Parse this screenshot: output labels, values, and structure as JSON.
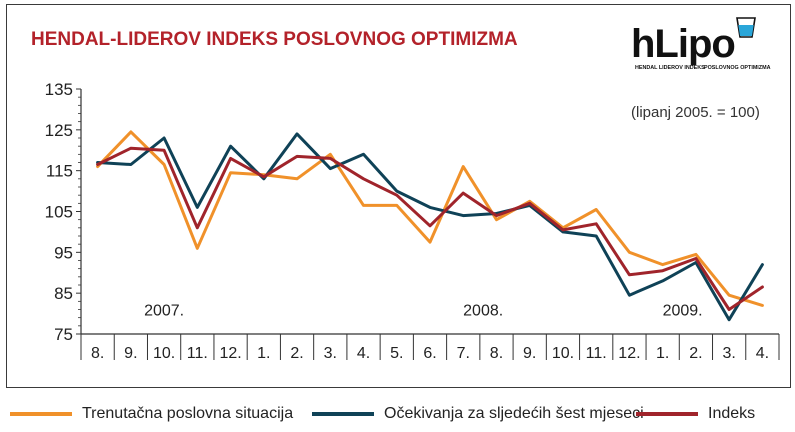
{
  "chart_data": {
    "type": "line",
    "title": "HENDAL-LIDEROV INDEKS POSLOVNOG OPTIMIZMA",
    "annotation": "(lipanj 2005. = 100)",
    "logo": {
      "text": "hLipo",
      "subtitle_left": "HENDAL LIDEROV INDEKS",
      "subtitle_right": "POSLOVNOG OPTIMIZMA"
    },
    "categories": [
      "8.",
      "9.",
      "10.",
      "11.",
      "12.",
      "1.",
      "2.",
      "3.",
      "4.",
      "5.",
      "6.",
      "7.",
      "8.",
      "9.",
      "10.",
      "11.",
      "12.",
      "1.",
      "2.",
      "3.",
      "4."
    ],
    "year_labels": [
      {
        "label": "2007.",
        "at_index": 2
      },
      {
        "label": "2008.",
        "at_index": 11.6
      },
      {
        "label": "2009.",
        "at_index": 17.6
      }
    ],
    "ylim": [
      75,
      135
    ],
    "yticks": [
      75,
      85,
      95,
      105,
      115,
      125,
      135
    ],
    "grid": false,
    "legend_position": "bottom",
    "series": [
      {
        "name": "Trenutačna poslovna situacija",
        "color": "#f0912a",
        "values": [
          116,
          124.5,
          116.5,
          96,
          114.5,
          114,
          113,
          119,
          106.5,
          106.5,
          97.5,
          116,
          103,
          107.5,
          101,
          105.5,
          95,
          92,
          94.5,
          84.5,
          82
        ]
      },
      {
        "name": "Očekivanja za sljedećih šest mjeseci",
        "color": "#0f4257",
        "values": [
          117,
          116.5,
          123,
          106,
          121,
          113,
          124,
          115.5,
          119,
          110,
          106,
          104,
          104.5,
          106.5,
          100,
          99,
          84.5,
          88,
          92.5,
          78.5,
          92
        ]
      },
      {
        "name": "Indeks",
        "color": "#a0242b",
        "values": [
          116.5,
          120.5,
          120,
          101,
          118,
          113.5,
          118.5,
          118,
          113,
          109,
          101.5,
          109.5,
          104,
          107,
          100.5,
          102,
          89.5,
          90.5,
          93.5,
          81,
          86.5
        ]
      }
    ]
  }
}
